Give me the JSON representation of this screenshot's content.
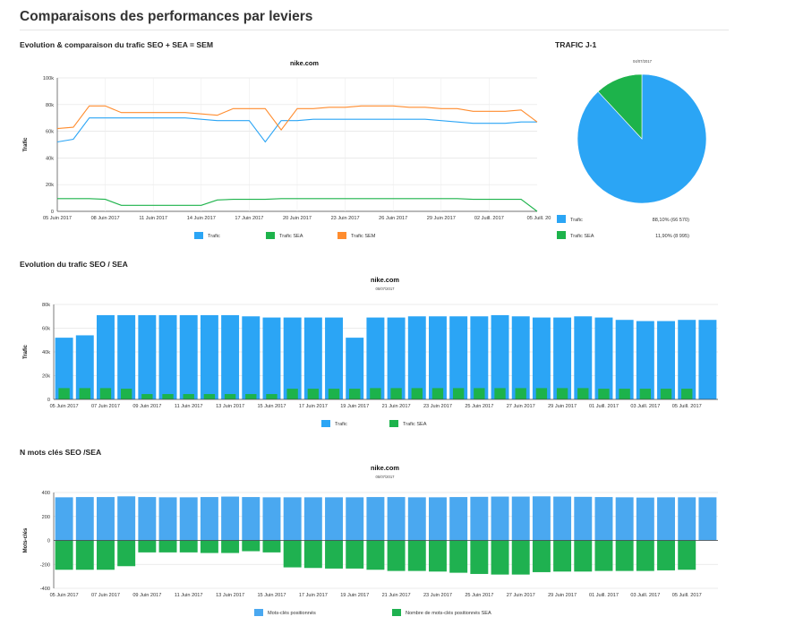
{
  "page": {
    "title": "Comparaisons des performances par leviers"
  },
  "colors": {
    "seo": "#2ba5f5",
    "sea": "#1db34b",
    "sem": "#ff8c2e",
    "mots_seo": "#4aa8f0",
    "mots_sea": "#1fb150"
  },
  "chart_data": [
    {
      "id": "line-sem",
      "type": "line",
      "section_title": "Evolution & comparaison du trafic SEO + SEA = SEM",
      "title": "nike.com",
      "ylabel": "Trafic",
      "ylim": [
        0,
        100000
      ],
      "yticks": [
        "0",
        "20k",
        "40k",
        "60k",
        "80k",
        "100k"
      ],
      "x_dates": [
        "05 Juin 2017",
        "06 Juin 2017",
        "07 Juin 2017",
        "08 Juin 2017",
        "09 Juin 2017",
        "10 Juin 2017",
        "11 Juin 2017",
        "12 Juin 2017",
        "13 Juin 2017",
        "14 Juin 2017",
        "15 Juin 2017",
        "16 Juin 2017",
        "17 Juin 2017",
        "18 Juin 2017",
        "19 Juin 2017",
        "20 Juin 2017",
        "21 Juin 2017",
        "22 Juin 2017",
        "23 Juin 2017",
        "24 Juin 2017",
        "25 Juin 2017",
        "26 Juin 2017",
        "27 Juin 2017",
        "28 Juin 2017",
        "29 Juin 2017",
        "30 Juin 2017",
        "01 Juill. 2017",
        "02 Juill. 2017",
        "03 Juill. 2017",
        "04 Juill. 2017",
        "05 Juill. 2017"
      ],
      "x_ticks": [
        "05 Juin 2017",
        "08 Juin 2017",
        "11 Juin 2017",
        "14 Juin 2017",
        "17 Juin 2017",
        "20 Juin 2017",
        "23 Juin 2017",
        "26 Juin 2017",
        "29 Juin 2017",
        "02 Juill. 2017",
        "05 Juill. 20"
      ],
      "series": [
        {
          "name": "Trafic",
          "color": "#2ba5f5",
          "values": [
            52000,
            54000,
            70000,
            70000,
            70000,
            70000,
            70000,
            70000,
            70000,
            69000,
            68000,
            68000,
            68000,
            52000,
            68000,
            68000,
            69000,
            69000,
            69000,
            69000,
            69000,
            69000,
            69000,
            69000,
            68000,
            67000,
            66000,
            66000,
            66000,
            67000,
            67000
          ]
        },
        {
          "name": "Trafic SEA",
          "color": "#1db34b",
          "values": [
            9500,
            9500,
            9500,
            9000,
            4500,
            4500,
            4500,
            4500,
            4500,
            4500,
            8500,
            9000,
            9000,
            9000,
            9500,
            9500,
            9500,
            9500,
            9500,
            9500,
            9500,
            9500,
            9500,
            9500,
            9500,
            9500,
            9000,
            9000,
            9000,
            9000,
            0
          ]
        },
        {
          "name": "Trafic SEM",
          "color": "#ff8c2e",
          "values": [
            62000,
            63000,
            79000,
            79000,
            74000,
            74000,
            74000,
            74000,
            74000,
            73000,
            72000,
            77000,
            77000,
            77000,
            61000,
            77000,
            77000,
            78000,
            78000,
            79000,
            79000,
            79000,
            78000,
            78000,
            77000,
            77000,
            75000,
            75000,
            75000,
            76000,
            67000
          ]
        }
      ],
      "legend": [
        "Trafic",
        "Trafic SEA",
        "Trafic SEM"
      ]
    },
    {
      "id": "pie-j1",
      "type": "pie",
      "section_title": "TRAFIC J-1",
      "subtitle": "04/07/2017",
      "slices": [
        {
          "name": "Trafic",
          "percent": 88.1,
          "label": "88,10% (66 570)",
          "color": "#2ba5f5"
        },
        {
          "name": "Trafic SEA",
          "percent": 11.9,
          "label": "11,90% (8 995)",
          "color": "#1db34b"
        }
      ]
    },
    {
      "id": "bar-seo-sea",
      "type": "bar",
      "section_title": "Evolution du trafic SEO / SEA",
      "title": "nike.com",
      "subtitle": "05/07/2017",
      "ylabel": "Trafic",
      "ylim": [
        0,
        80000
      ],
      "yticks": [
        "0",
        "20k",
        "40k",
        "60k",
        "80k"
      ],
      "x_ticks": [
        "05 Juin 2017",
        "07 Juin 2017",
        "09 Juin 2017",
        "11 Juin 2017",
        "13 Juin 2017",
        "15 Juin 2017",
        "17 Juin 2017",
        "19 Juin 2017",
        "21 Juin 2017",
        "23 Juin 2017",
        "25 Juin 2017",
        "27 Juin 2017",
        "29 Juin 2017",
        "01 Juill. 2017",
        "03 Juill. 2017",
        "05 Juill. 2017"
      ],
      "series": [
        {
          "name": "Trafic",
          "color": "#2ba5f5",
          "values": [
            52000,
            54000,
            71000,
            71000,
            71000,
            71000,
            71000,
            71000,
            71000,
            70000,
            69000,
            69000,
            69000,
            69000,
            52000,
            69000,
            69000,
            70000,
            70000,
            70000,
            70000,
            71000,
            70000,
            69000,
            69000,
            70000,
            69000,
            67000,
            66000,
            66000,
            67000,
            67000
          ]
        },
        {
          "name": "Trafic SEA",
          "color": "#1db34b",
          "values": [
            9500,
            9500,
            9500,
            9000,
            4500,
            4500,
            4500,
            4500,
            4500,
            4500,
            4500,
            9000,
            9000,
            9000,
            9000,
            9500,
            9500,
            9500,
            9500,
            9500,
            9500,
            9500,
            9500,
            9500,
            9500,
            9500,
            9000,
            9000,
            9000,
            9000,
            9000,
            0
          ]
        }
      ],
      "legend": [
        "Trafic",
        "Trafic SEA"
      ]
    },
    {
      "id": "bar-mots",
      "type": "bar",
      "section_title": "N mots clés SEO /SEA",
      "title": "nike.com",
      "subtitle": "05/07/2017",
      "ylabel": "Mots-clés",
      "ylim": [
        -400,
        400
      ],
      "yticks": [
        "-400",
        "-200",
        "0",
        "200",
        "400"
      ],
      "x_ticks": [
        "05 Juin 2017",
        "07 Juin 2017",
        "09 Juin 2017",
        "11 Juin 2017",
        "13 Juin 2017",
        "15 Juin 2017",
        "17 Juin 2017",
        "19 Juin 2017",
        "21 Juin 2017",
        "23 Juin 2017",
        "25 Juin 2017",
        "27 Juin 2017",
        "29 Juin 2017",
        "01 Juill. 2017",
        "03 Juill. 2017",
        "05 Juill. 2017"
      ],
      "series": [
        {
          "name": "Mots-clés positionnés",
          "color": "#4aa8f0",
          "values": [
            360,
            362,
            362,
            368,
            362,
            360,
            360,
            362,
            366,
            362,
            360,
            360,
            360,
            360,
            360,
            362,
            362,
            360,
            360,
            362,
            364,
            366,
            366,
            368,
            366,
            364,
            362,
            360,
            358,
            360,
            360,
            360
          ]
        },
        {
          "name": "Nombre de mots-clés positionnés SEA",
          "color": "#1fb150",
          "values": [
            -245,
            -245,
            -245,
            -215,
            -100,
            -100,
            -100,
            -105,
            -105,
            -90,
            -100,
            -225,
            -230,
            -235,
            -235,
            -245,
            -255,
            -255,
            -260,
            -270,
            -280,
            -285,
            -285,
            -265,
            -260,
            -260,
            -255,
            -255,
            -255,
            -250,
            -245,
            0
          ]
        }
      ],
      "legend": [
        "Mots-clés positionnés",
        "Nombre de mots-clés positionnés SEA"
      ]
    }
  ]
}
